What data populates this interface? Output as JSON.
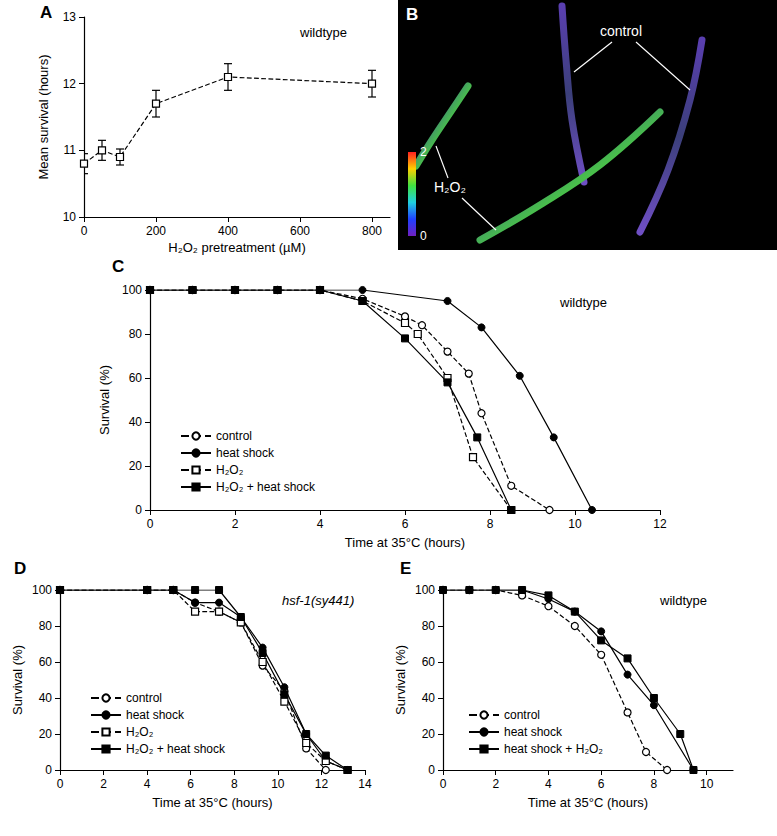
{
  "chart_data": [
    {
      "panel": "A",
      "type": "line",
      "annotation": "wildtype",
      "x_label": "H₂O₂ pretreatment (µM)",
      "y_label": "Mean survival (hours)",
      "xlim": [
        0,
        850
      ],
      "xticks": [
        0,
        200,
        400,
        600,
        800
      ],
      "ylim": [
        10,
        13
      ],
      "yticks": [
        10,
        11,
        12,
        13
      ],
      "grid": false,
      "series": [
        {
          "x": [
            0,
            50,
            100,
            200,
            400,
            800
          ],
          "values": [
            10.8,
            11.0,
            10.9,
            11.7,
            12.1,
            12.0
          ],
          "errors": [
            0.15,
            0.15,
            0.12,
            0.2,
            0.2,
            0.2
          ],
          "color": "#000000",
          "marker": "square-open",
          "line_style": "dashed"
        }
      ]
    },
    {
      "panel": "B",
      "type": "image",
      "labels": [
        "control",
        "H₂O₂"
      ],
      "colorbar": {
        "range": [
          0,
          2
        ],
        "ticks": [
          0,
          2
        ]
      }
    },
    {
      "panel": "C",
      "type": "line",
      "annotation": "wildtype",
      "x_label": "Time at 35°C (hours)",
      "y_label": "Survival (%)",
      "xlim": [
        0,
        12
      ],
      "xticks": [
        0,
        2,
        4,
        6,
        8,
        10,
        12
      ],
      "ylim": [
        0,
        100
      ],
      "yticks": [
        0,
        20,
        40,
        60,
        80,
        100
      ],
      "grid": false,
      "legend": "lower left",
      "series": [
        {
          "name": "control",
          "color": "#000000",
          "marker": "circle-open",
          "line_style": "dashed",
          "x": [
            0,
            1,
            2,
            3,
            4,
            5,
            6,
            6.4,
            7,
            7.5,
            7.8,
            8.5,
            9.4
          ],
          "values": [
            100,
            100,
            100,
            100,
            100,
            96,
            88,
            84,
            72,
            62,
            44,
            11,
            0
          ]
        },
        {
          "name": "heat shock",
          "color": "#000000",
          "marker": "circle",
          "line_style": "solid",
          "x": [
            0,
            1,
            2,
            3,
            4,
            5,
            7,
            7.8,
            8.7,
            9.5,
            10.4
          ],
          "values": [
            100,
            100,
            100,
            100,
            100,
            100,
            95,
            83,
            61,
            33,
            0
          ]
        },
        {
          "name": "H₂O₂",
          "color": "#000000",
          "marker": "square-open",
          "line_style": "dashed",
          "x": [
            0,
            1,
            2,
            3,
            4,
            5,
            6,
            6.3,
            7,
            7.6,
            8.5
          ],
          "values": [
            100,
            100,
            100,
            100,
            100,
            95,
            85,
            80,
            60,
            24,
            0
          ]
        },
        {
          "name": "H₂O₂ + heat shock",
          "color": "#000000",
          "marker": "square",
          "line_style": "solid",
          "x": [
            0,
            1,
            2,
            3,
            4,
            5,
            6,
            7,
            7.7,
            8.5
          ],
          "values": [
            100,
            100,
            100,
            100,
            100,
            95,
            78,
            58,
            33,
            0
          ]
        }
      ]
    },
    {
      "panel": "D",
      "type": "line",
      "annotation": "hsf-1(sy441)",
      "x_label": "Time at 35°C (hours)",
      "y_label": "Survival (%)",
      "xlim": [
        0,
        14
      ],
      "xticks": [
        0,
        2,
        4,
        6,
        8,
        10,
        12,
        14
      ],
      "ylim": [
        0,
        100
      ],
      "yticks": [
        0,
        20,
        40,
        60,
        80,
        100
      ],
      "grid": false,
      "legend": "lower left",
      "series": [
        {
          "name": "control",
          "color": "#000000",
          "marker": "circle-open",
          "line_style": "dashed",
          "x": [
            0,
            4,
            5.2,
            6.2,
            7.3,
            8.3,
            9.3,
            10.3,
            11.3,
            12.2
          ],
          "values": [
            100,
            100,
            100,
            93,
            88,
            82,
            58,
            44,
            12,
            0
          ]
        },
        {
          "name": "heat shock",
          "color": "#000000",
          "marker": "circle",
          "line_style": "solid",
          "x": [
            0,
            4,
            5.2,
            6.2,
            7.3,
            8.3,
            9.3,
            10.3,
            11.3,
            12.2,
            13.2
          ],
          "values": [
            100,
            100,
            100,
            93,
            93,
            85,
            68,
            46,
            20,
            5,
            0
          ]
        },
        {
          "name": "H₂O₂",
          "color": "#000000",
          "marker": "square-open",
          "line_style": "dashed",
          "x": [
            0,
            4,
            5.2,
            6.2,
            7.3,
            8.3,
            9.3,
            10.3,
            11.3,
            12.2,
            13.2
          ],
          "values": [
            100,
            100,
            100,
            88,
            88,
            82,
            60,
            38,
            15,
            5,
            0
          ]
        },
        {
          "name": "H₂O₂ + heat shock",
          "color": "#000000",
          "marker": "square",
          "line_style": "solid",
          "x": [
            0,
            4,
            5.2,
            6.2,
            7.3,
            8.3,
            9.3,
            10.3,
            11.3,
            12.2,
            13.2
          ],
          "values": [
            100,
            100,
            100,
            100,
            100,
            85,
            65,
            42,
            20,
            8,
            0
          ]
        }
      ]
    },
    {
      "panel": "E",
      "type": "line",
      "annotation": "wildtype",
      "x_label": "Time at 35°C (hours)",
      "y_label": "Survival (%)",
      "xlim": [
        0,
        11
      ],
      "xticks": [
        0,
        2,
        4,
        6,
        8,
        10
      ],
      "ylim": [
        0,
        100
      ],
      "yticks": [
        0,
        20,
        40,
        60,
        80,
        100
      ],
      "grid": false,
      "legend": "lower left",
      "series": [
        {
          "name": "control",
          "color": "#000000",
          "marker": "circle-open",
          "line_style": "dashed",
          "x": [
            0,
            1,
            2,
            3,
            4,
            5,
            6,
            7,
            7.7,
            8.5
          ],
          "values": [
            100,
            100,
            100,
            97,
            91,
            80,
            64,
            32,
            10,
            0
          ]
        },
        {
          "name": "heat shock",
          "color": "#000000",
          "marker": "circle",
          "line_style": "solid",
          "x": [
            0,
            1,
            2,
            3,
            4,
            5,
            6,
            7,
            8,
            9.5
          ],
          "values": [
            100,
            100,
            100,
            100,
            95,
            88,
            77,
            53,
            36,
            0
          ]
        },
        {
          "name": "heat shock + H₂O₂",
          "color": "#000000",
          "marker": "square",
          "line_style": "solid",
          "x": [
            0,
            1,
            2,
            3,
            4,
            5,
            6,
            7,
            8,
            9,
            9.5
          ],
          "values": [
            100,
            100,
            100,
            100,
            97,
            88,
            72,
            62,
            40,
            20,
            0
          ]
        }
      ]
    }
  ]
}
